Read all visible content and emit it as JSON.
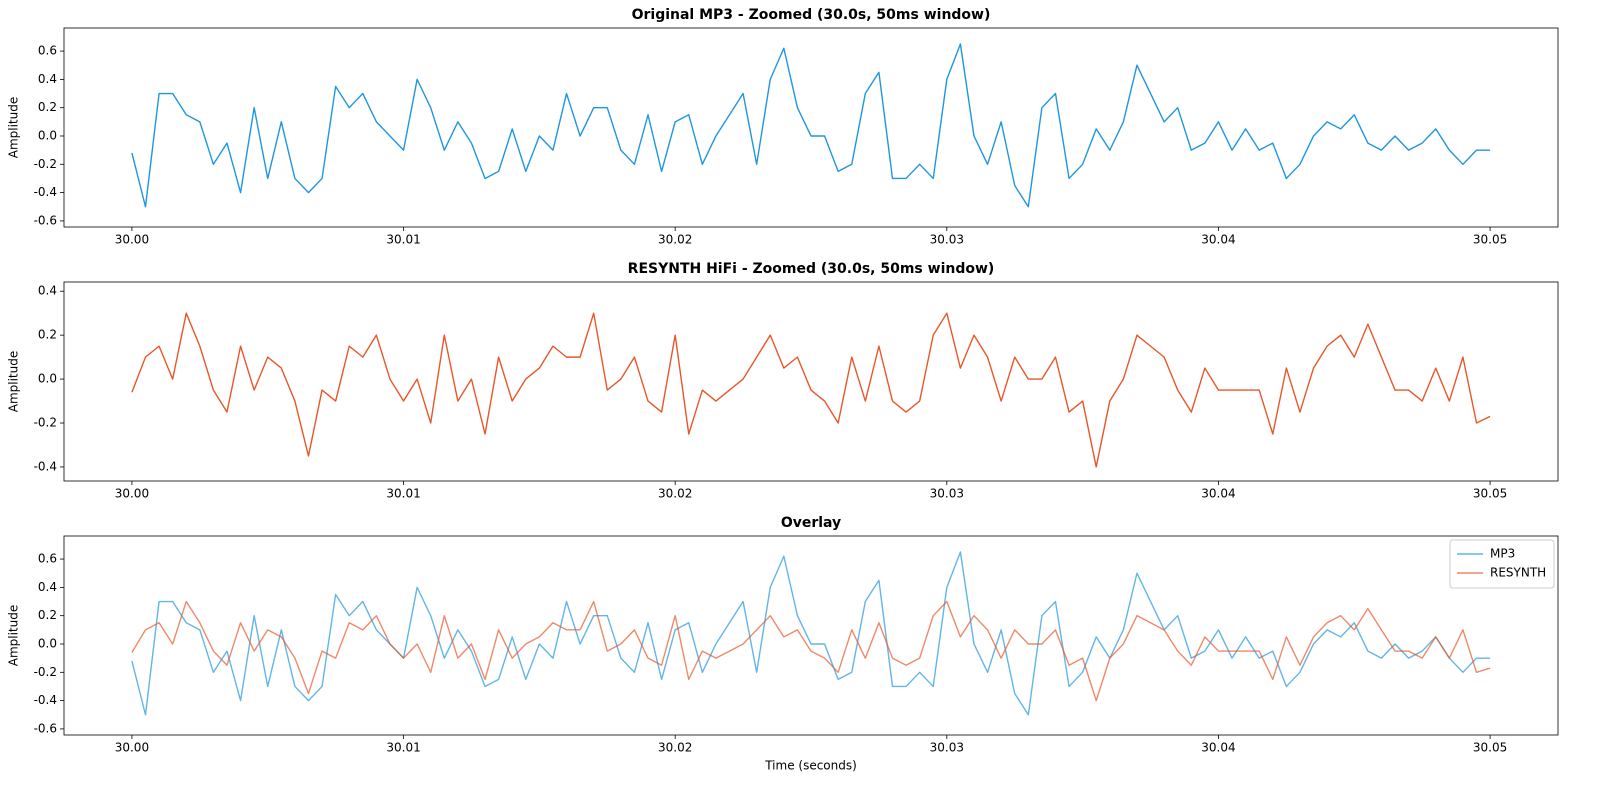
{
  "chart_data": [
    {
      "type": "line",
      "title": "Original MP3 - Zoomed (30.0s, 50ms window)",
      "ylabel": "Amplitude",
      "x": [
        30,
        30.0005,
        30.001,
        30.0015,
        30.002,
        30.0025,
        30.003,
        30.0035,
        30.004,
        30.0045,
        30.005,
        30.0055,
        30.006,
        30.0065,
        30.007,
        30.0075,
        30.008,
        30.0085,
        30.009,
        30.0095,
        30.01,
        30.0105,
        30.011,
        30.0115,
        30.012,
        30.0125,
        30.013,
        30.0135,
        30.014,
        30.0145,
        30.015,
        30.0155,
        30.016,
        30.0165,
        30.017,
        30.0175,
        30.018,
        30.0185,
        30.019,
        30.0195,
        30.02,
        30.0205,
        30.021,
        30.0215,
        30.022,
        30.0225,
        30.023,
        30.0235,
        30.024,
        30.0245,
        30.025,
        30.0255,
        30.026,
        30.0265,
        30.027,
        30.0275,
        30.028,
        30.0285,
        30.029,
        30.0295,
        30.03,
        30.0305,
        30.031,
        30.0315,
        30.032,
        30.0325,
        30.033,
        30.0335,
        30.034,
        30.0345,
        30.035,
        30.0355,
        30.036,
        30.0365,
        30.037,
        30.0375,
        30.038,
        30.0385,
        30.039,
        30.0395,
        30.04,
        30.0405,
        30.041,
        30.0415,
        30.042,
        30.0425,
        30.043,
        30.0435,
        30.044,
        30.0445,
        30.045,
        30.0455,
        30.046,
        30.0465,
        30.047,
        30.0475,
        30.048,
        30.0485,
        30.049,
        30.0495,
        30.05
      ],
      "series": [
        {
          "color": "#1f96e0",
          "alpha": 1,
          "values": [
            -0.12,
            -0.5,
            0.3,
            0.3,
            0.15,
            0.1,
            -0.2,
            -0.05,
            -0.4,
            0.2,
            -0.3,
            0.1,
            -0.3,
            -0.4,
            -0.3,
            0.35,
            0.2,
            0.3,
            0.1,
            0.0,
            -0.1,
            0.4,
            0.2,
            -0.1,
            0.1,
            -0.05,
            -0.3,
            -0.25,
            0.05,
            -0.25,
            0.0,
            -0.1,
            0.3,
            0.0,
            0.2,
            0.2,
            -0.1,
            -0.2,
            0.15,
            -0.25,
            0.1,
            0.15,
            -0.2,
            0.0,
            0.15,
            0.3,
            -0.2,
            0.4,
            0.62,
            0.2,
            0.0,
            0.0,
            -0.25,
            -0.2,
            0.3,
            0.45,
            -0.3,
            -0.3,
            -0.2,
            -0.3,
            0.4,
            0.65,
            0.0,
            -0.2,
            0.1,
            -0.35,
            -0.5,
            0.2,
            0.3,
            -0.3,
            -0.2,
            0.05,
            -0.1,
            0.1,
            0.5,
            0.3,
            0.1,
            0.2,
            -0.1,
            -0.05,
            0.1,
            -0.1,
            0.05,
            -0.1,
            -0.05,
            -0.3,
            -0.2,
            0.0,
            0.1,
            0.05,
            0.15,
            -0.05,
            -0.1,
            0.0,
            -0.1,
            -0.05,
            0.05,
            -0.1,
            -0.2,
            -0.1,
            -0.1
          ]
        }
      ],
      "xlim": [
        29.9975,
        30.0525
      ],
      "ylim": [
        -0.643,
        0.763
      ],
      "xticks": [
        {
          "value": 30,
          "label": "30.00"
        },
        30.01,
        30.02,
        30.03,
        30.04,
        30.05
      ],
      "yticks": [
        -0.6,
        -0.4,
        -0.2,
        {
          "value": 0,
          "label": "0.0"
        },
        0.2,
        0.4,
        0.6
      ]
    },
    {
      "type": "line",
      "title": "RESYNTH HiFi - Zoomed (30.0s, 50ms window)",
      "ylabel": "Amplitude",
      "x": [
        30,
        30.0005,
        30.001,
        30.0015,
        30.002,
        30.0025,
        30.003,
        30.0035,
        30.004,
        30.0045,
        30.005,
        30.0055,
        30.006,
        30.0065,
        30.007,
        30.0075,
        30.008,
        30.0085,
        30.009,
        30.0095,
        30.01,
        30.0105,
        30.011,
        30.0115,
        30.012,
        30.0125,
        30.013,
        30.0135,
        30.014,
        30.0145,
        30.015,
        30.0155,
        30.016,
        30.0165,
        30.017,
        30.0175,
        30.018,
        30.0185,
        30.019,
        30.0195,
        30.02,
        30.0205,
        30.021,
        30.0215,
        30.022,
        30.0225,
        30.023,
        30.0235,
        30.024,
        30.0245,
        30.025,
        30.0255,
        30.026,
        30.0265,
        30.027,
        30.0275,
        30.028,
        30.0285,
        30.029,
        30.0295,
        30.03,
        30.0305,
        30.031,
        30.0315,
        30.032,
        30.0325,
        30.033,
        30.0335,
        30.034,
        30.0345,
        30.035,
        30.0355,
        30.036,
        30.0365,
        30.037,
        30.0375,
        30.038,
        30.0385,
        30.039,
        30.0395,
        30.04,
        30.0405,
        30.041,
        30.0415,
        30.042,
        30.0425,
        30.043,
        30.0435,
        30.044,
        30.0445,
        30.045,
        30.0455,
        30.046,
        30.0465,
        30.047,
        30.0475,
        30.048,
        30.0485,
        30.049,
        30.0495,
        30.05
      ],
      "series": [
        {
          "color": "#e8572a",
          "alpha": 1,
          "values": [
            -0.06,
            0.1,
            0.15,
            0.0,
            0.3,
            0.15,
            -0.05,
            -0.15,
            0.15,
            -0.05,
            0.1,
            0.05,
            -0.1,
            -0.35,
            -0.05,
            -0.1,
            0.15,
            0.1,
            0.2,
            0.0,
            -0.1,
            0.0,
            -0.2,
            0.2,
            -0.1,
            0.0,
            -0.25,
            0.1,
            -0.1,
            0.0,
            0.05,
            0.15,
            0.1,
            0.1,
            0.3,
            -0.05,
            0.0,
            0.1,
            -0.1,
            -0.15,
            0.2,
            -0.25,
            -0.05,
            -0.1,
            -0.05,
            0.0,
            0.1,
            0.2,
            0.05,
            0.1,
            -0.05,
            -0.1,
            -0.2,
            0.1,
            -0.1,
            0.15,
            -0.1,
            -0.15,
            -0.1,
            0.2,
            0.3,
            0.05,
            0.2,
            0.1,
            -0.1,
            0.1,
            0.0,
            0.0,
            0.1,
            -0.15,
            -0.1,
            -0.4,
            -0.1,
            0.0,
            0.2,
            0.15,
            0.1,
            -0.05,
            -0.15,
            0.05,
            -0.05,
            -0.05,
            -0.05,
            -0.05,
            -0.25,
            0.05,
            -0.15,
            0.05,
            0.15,
            0.2,
            0.1,
            0.25,
            0.1,
            -0.05,
            -0.05,
            -0.1,
            0.05,
            -0.1,
            0.1,
            -0.2,
            -0.17
          ]
        }
      ],
      "xlim": [
        29.9975,
        30.0525
      ],
      "ylim": [
        -0.464,
        0.442
      ],
      "xticks": [
        {
          "value": 30,
          "label": "30.00"
        },
        30.01,
        30.02,
        30.03,
        30.04,
        30.05
      ],
      "yticks": [
        -0.4,
        -0.2,
        {
          "value": 0,
          "label": "0.0"
        },
        0.2,
        0.4
      ]
    },
    {
      "type": "line",
      "title": "Overlay",
      "ylabel": "Amplitude",
      "xlabel": "Time (seconds)",
      "legend": "upper right",
      "x": [
        30,
        30.0005,
        30.001,
        30.0015,
        30.002,
        30.0025,
        30.003,
        30.0035,
        30.004,
        30.0045,
        30.005,
        30.0055,
        30.006,
        30.0065,
        30.007,
        30.0075,
        30.008,
        30.0085,
        30.009,
        30.0095,
        30.01,
        30.0105,
        30.011,
        30.0115,
        30.012,
        30.0125,
        30.013,
        30.0135,
        30.014,
        30.0145,
        30.015,
        30.0155,
        30.016,
        30.0165,
        30.017,
        30.0175,
        30.018,
        30.0185,
        30.019,
        30.0195,
        30.02,
        30.0205,
        30.021,
        30.0215,
        30.022,
        30.0225,
        30.023,
        30.0235,
        30.024,
        30.0245,
        30.025,
        30.0255,
        30.026,
        30.0265,
        30.027,
        30.0275,
        30.028,
        30.0285,
        30.029,
        30.0295,
        30.03,
        30.0305,
        30.031,
        30.0315,
        30.032,
        30.0325,
        30.033,
        30.0335,
        30.034,
        30.0345,
        30.035,
        30.0355,
        30.036,
        30.0365,
        30.037,
        30.0375,
        30.038,
        30.0385,
        30.039,
        30.0395,
        30.04,
        30.0405,
        30.041,
        30.0415,
        30.042,
        30.0425,
        30.043,
        30.0435,
        30.044,
        30.0445,
        30.045,
        30.0455,
        30.046,
        30.0465,
        30.047,
        30.0475,
        30.048,
        30.0485,
        30.049,
        30.0495,
        30.05
      ],
      "series": [
        {
          "name": "MP3",
          "color": "#1f96e0",
          "alpha": 0.7,
          "values": [
            -0.12,
            -0.5,
            0.3,
            0.3,
            0.15,
            0.1,
            -0.2,
            -0.05,
            -0.4,
            0.2,
            -0.3,
            0.1,
            -0.3,
            -0.4,
            -0.3,
            0.35,
            0.2,
            0.3,
            0.1,
            0.0,
            -0.1,
            0.4,
            0.2,
            -0.1,
            0.1,
            -0.05,
            -0.3,
            -0.25,
            0.05,
            -0.25,
            0.0,
            -0.1,
            0.3,
            0.0,
            0.2,
            0.2,
            -0.1,
            -0.2,
            0.15,
            -0.25,
            0.1,
            0.15,
            -0.2,
            0.0,
            0.15,
            0.3,
            -0.2,
            0.4,
            0.62,
            0.2,
            0.0,
            0.0,
            -0.25,
            -0.2,
            0.3,
            0.45,
            -0.3,
            -0.3,
            -0.2,
            -0.3,
            0.4,
            0.65,
            0.0,
            -0.2,
            0.1,
            -0.35,
            -0.5,
            0.2,
            0.3,
            -0.3,
            -0.2,
            0.05,
            -0.1,
            0.1,
            0.5,
            0.3,
            0.1,
            0.2,
            -0.1,
            -0.05,
            0.1,
            -0.1,
            0.05,
            -0.1,
            -0.05,
            -0.3,
            -0.2,
            0.0,
            0.1,
            0.05,
            0.15,
            -0.05,
            -0.1,
            0.0,
            -0.1,
            -0.05,
            0.05,
            -0.1,
            -0.2,
            -0.1,
            -0.1
          ]
        },
        {
          "name": "RESYNTH",
          "color": "#e8572a",
          "alpha": 0.7,
          "values": [
            -0.06,
            0.1,
            0.15,
            0.0,
            0.3,
            0.15,
            -0.05,
            -0.15,
            0.15,
            -0.05,
            0.1,
            0.05,
            -0.1,
            -0.35,
            -0.05,
            -0.1,
            0.15,
            0.1,
            0.2,
            0.0,
            -0.1,
            0.0,
            -0.2,
            0.2,
            -0.1,
            0.0,
            -0.25,
            0.1,
            -0.1,
            0.0,
            0.05,
            0.15,
            0.1,
            0.1,
            0.3,
            -0.05,
            0.0,
            0.1,
            -0.1,
            -0.15,
            0.2,
            -0.25,
            -0.05,
            -0.1,
            -0.05,
            0.0,
            0.1,
            0.2,
            0.05,
            0.1,
            -0.05,
            -0.1,
            -0.2,
            0.1,
            -0.1,
            0.15,
            -0.1,
            -0.15,
            -0.1,
            0.2,
            0.3,
            0.05,
            0.2,
            0.1,
            -0.1,
            0.1,
            0.0,
            0.0,
            0.1,
            -0.15,
            -0.1,
            -0.4,
            -0.1,
            0.0,
            0.2,
            0.15,
            0.1,
            -0.05,
            -0.15,
            0.05,
            -0.05,
            -0.05,
            -0.05,
            -0.05,
            -0.25,
            0.05,
            -0.15,
            0.05,
            0.15,
            0.2,
            0.1,
            0.25,
            0.1,
            -0.05,
            -0.05,
            -0.1,
            0.05,
            -0.1,
            0.1,
            -0.2,
            -0.17
          ]
        }
      ],
      "xlim": [
        29.9975,
        30.0525
      ],
      "ylim": [
        -0.643,
        0.763
      ],
      "xticks": [
        {
          "value": 30,
          "label": "30.00"
        },
        30.01,
        30.02,
        30.03,
        30.04,
        30.05
      ],
      "yticks": [
        -0.6,
        -0.4,
        -0.2,
        {
          "value": 0,
          "label": "0.0"
        },
        0.2,
        0.4,
        0.6
      ]
    }
  ]
}
